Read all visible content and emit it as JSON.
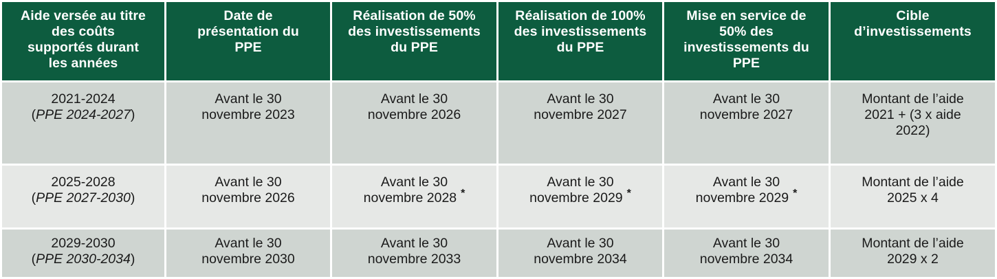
{
  "table": {
    "headers": [
      "Aide versée au titre des coûts supportés durant les années",
      "Date de présentation du PPE",
      "Réalisation de 50% des investissements du PPE",
      "Réalisation de 100% des investissements du PPE",
      "Mise en service de 50% des investissements du PPE",
      "Cible d’investissements"
    ],
    "rows": [
      {
        "years": "2021-2024",
        "ppe": "PPE 2024-2027",
        "presentation_l1": "Avant le 30",
        "presentation_l2": "novembre 2023",
        "real50_l1": "Avant le 30",
        "real50_l2": "novembre 2026",
        "real100_l1": "Avant le 30",
        "real100_l2": "novembre 2027",
        "service50_l1": "Avant le 30",
        "service50_l2": "novembre 2027",
        "cible_l1": "Montant de l’aide",
        "cible_l2": "2021 + (3 x aide",
        "cible_l3": "2022)"
      },
      {
        "years": "2025-2028",
        "ppe": "PPE 2027-2030",
        "presentation_l1": "Avant le 30",
        "presentation_l2": "novembre 2026",
        "real50_l1": "Avant le 30",
        "real50_l2": "novembre 2028",
        "real100_l1": "Avant le 30",
        "real100_l2": "novembre 2029",
        "service50_l1": "Avant le 30",
        "service50_l2": "novembre 2029",
        "cible_l1": "Montant de l’aide",
        "cible_l2": "2025 x 4",
        "footnote_mark": "*"
      },
      {
        "years": "2029-2030",
        "ppe": "PPE 2030-2034",
        "presentation_l1": "Avant le 30",
        "presentation_l2": "novembre 2030",
        "real50_l1": "Avant le 30",
        "real50_l2": "novembre 2033",
        "real100_l1": "Avant le 30",
        "real100_l2": "novembre 2034",
        "service50_l1": "Avant le 30",
        "service50_l2": "novembre 2034",
        "cible_l1": "Montant de l’aide",
        "cible_l2": "2029 x 2"
      }
    ]
  }
}
